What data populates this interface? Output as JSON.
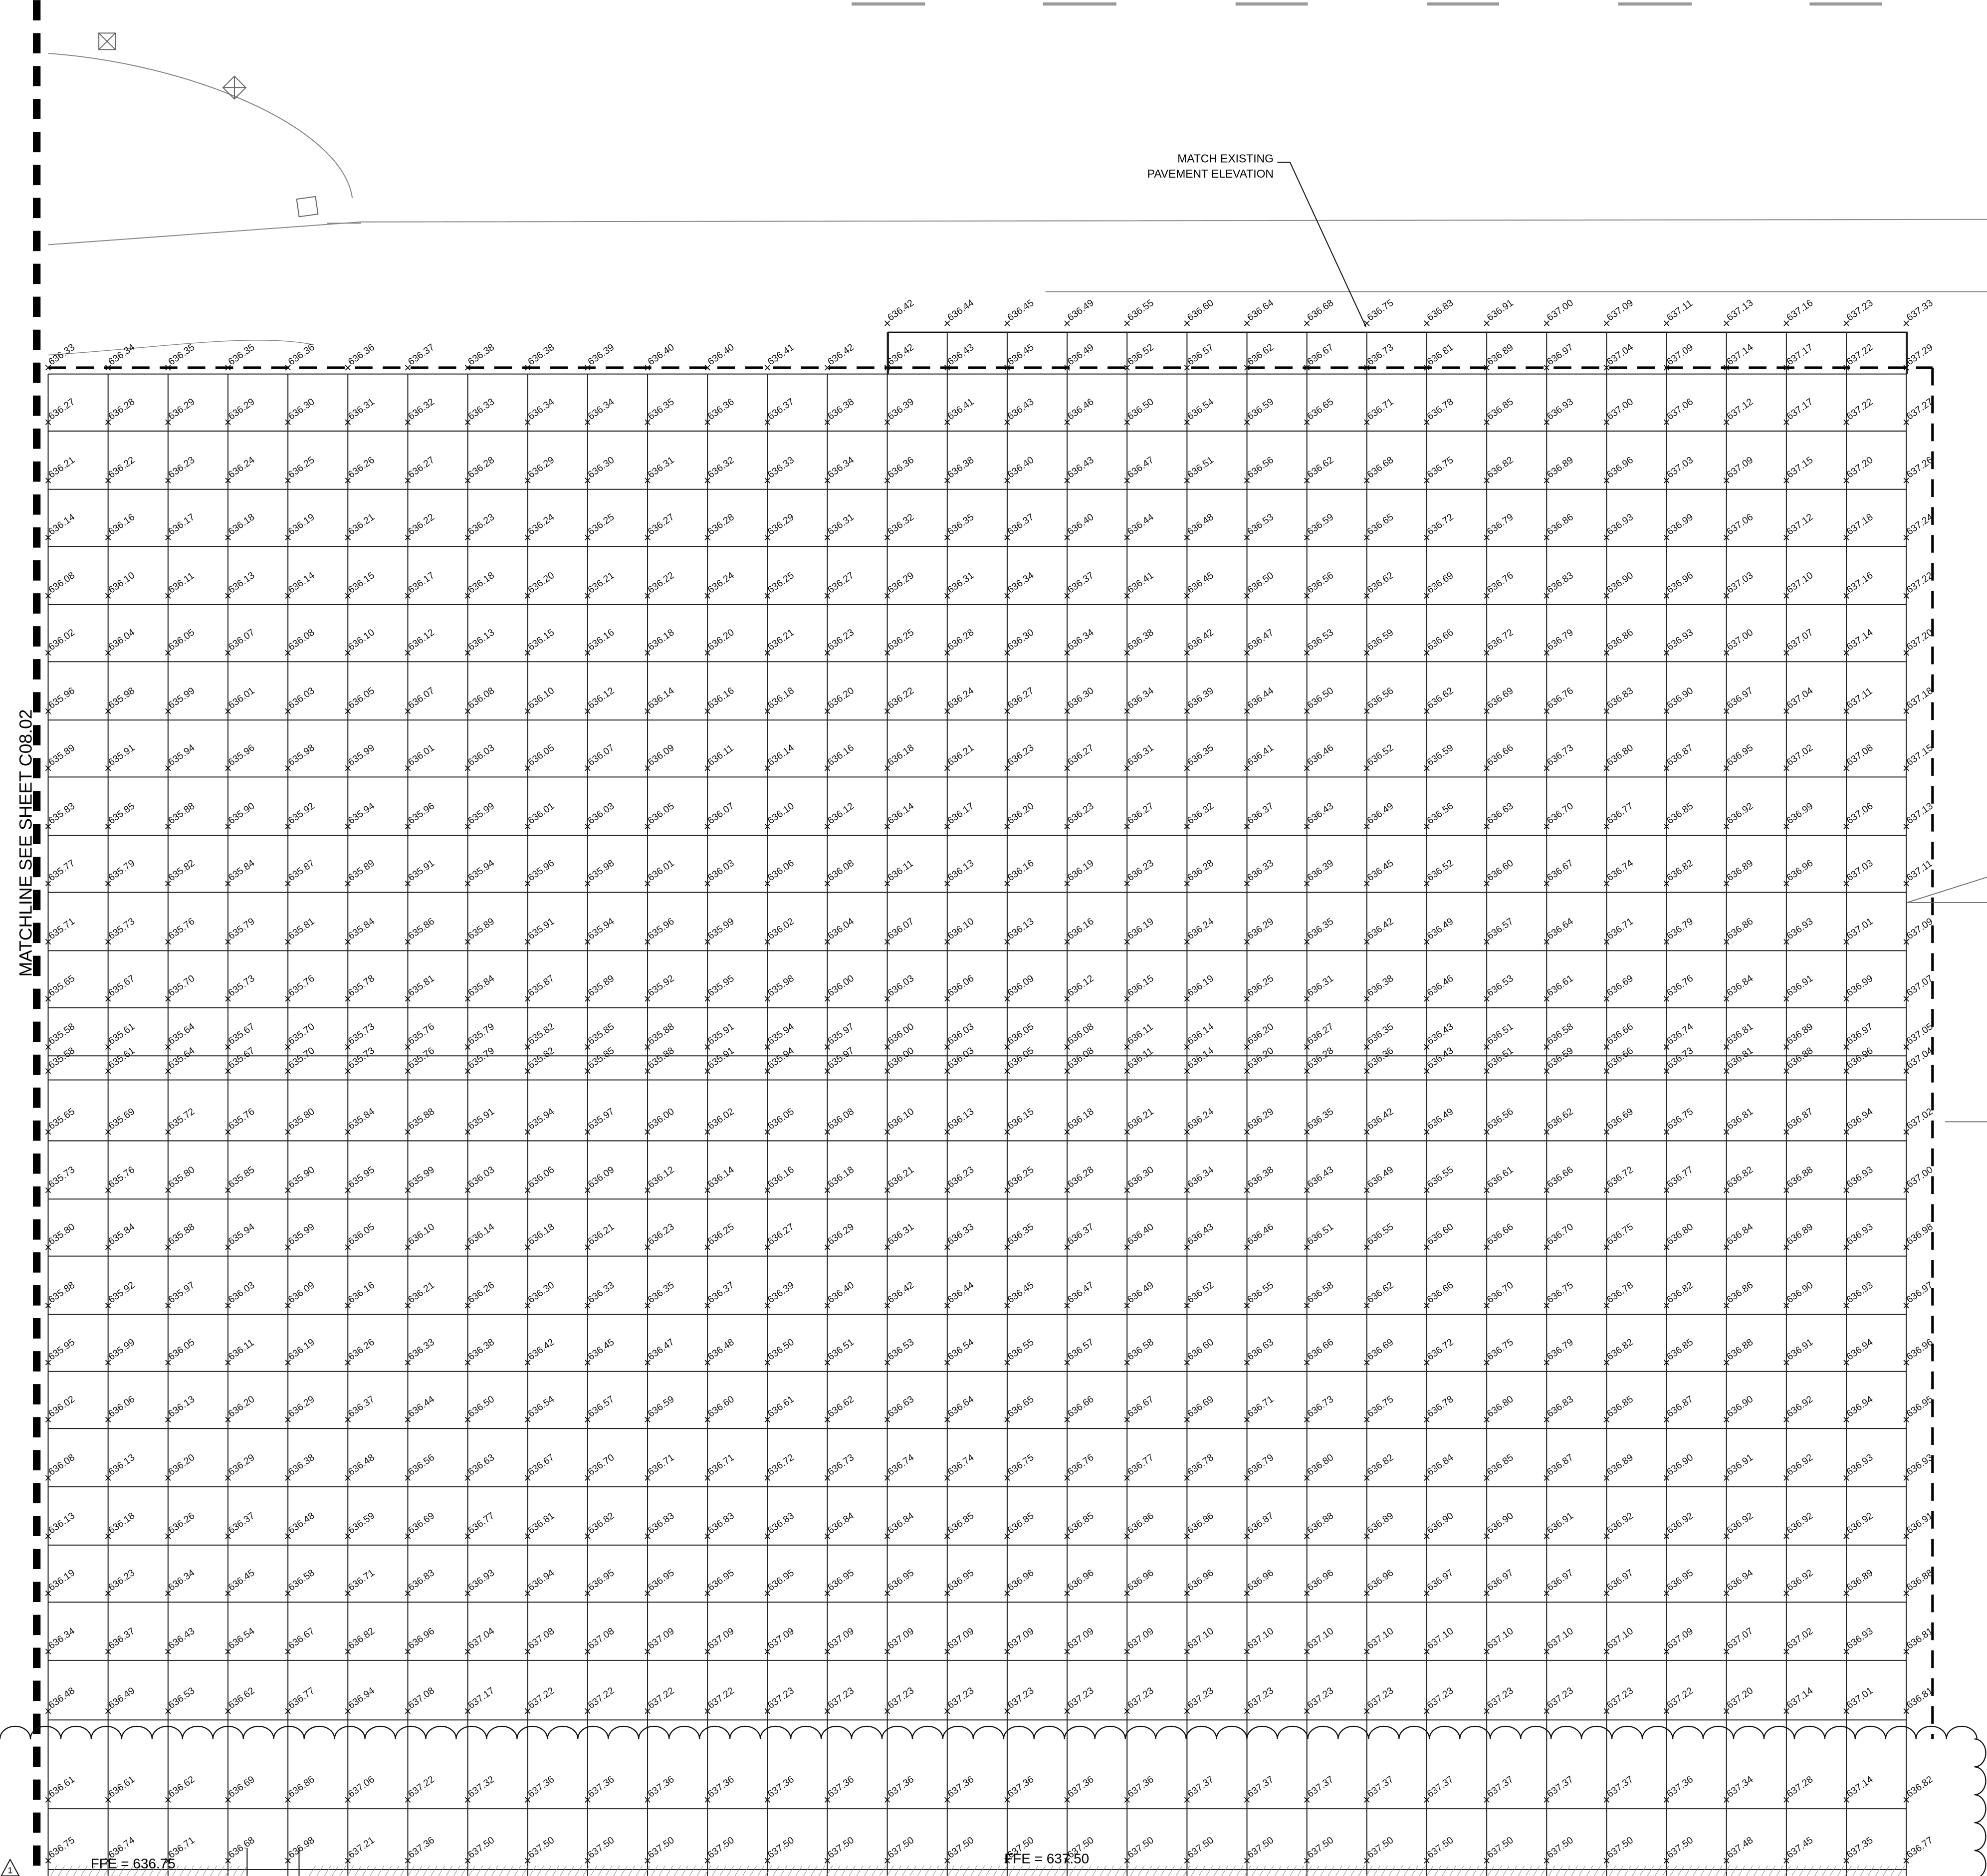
{
  "note": [
    "MATCH EXISTING",
    "PAVEMENT ELEVATION"
  ],
  "matchline": "MATCHLINE SEE SHEET C08.02",
  "ffe_labels": [
    "FFE = 636.75",
    "FFE = 637.50"
  ],
  "revision": "1",
  "top_edge_elevations": [
    "636.42",
    "636.44",
    "636.45",
    "636.49",
    "636.55",
    "636.60",
    "636.64",
    "636.68",
    "636.75",
    "636.83",
    "636.91",
    "637.00",
    "637.09",
    "637.11",
    "637.13",
    "637.16",
    "637.23",
    "637.33"
  ],
  "grid_rows": [
    [
      "636.33",
      "636.34",
      "636.35",
      "636.35",
      "636.36",
      "636.36",
      "636.37",
      "636.38",
      "636.38",
      "636.39",
      "636.40",
      "636.40",
      "636.41",
      "636.42",
      "636.42",
      "636.43",
      "636.45",
      "636.49",
      "636.52",
      "636.57",
      "636.62",
      "636.67",
      "636.73",
      "636.81",
      "636.89",
      "636.97",
      "637.04",
      "637.09",
      "637.14",
      "637.17",
      "637.22",
      "637.29"
    ],
    [
      "636.27",
      "636.28",
      "636.29",
      "636.29",
      "636.30",
      "636.31",
      "636.32",
      "636.33",
      "636.34",
      "636.34",
      "636.35",
      "636.36",
      "636.37",
      "636.38",
      "636.39",
      "636.41",
      "636.43",
      "636.46",
      "636.50",
      "636.54",
      "636.59",
      "636.65",
      "636.71",
      "636.78",
      "636.85",
      "636.93",
      "637.00",
      "637.06",
      "637.12",
      "637.17",
      "637.22",
      "637.27"
    ],
    [
      "636.21",
      "636.22",
      "636.23",
      "636.24",
      "636.25",
      "636.26",
      "636.27",
      "636.28",
      "636.29",
      "636.30",
      "636.31",
      "636.32",
      "636.33",
      "636.34",
      "636.36",
      "636.38",
      "636.40",
      "636.43",
      "636.47",
      "636.51",
      "636.56",
      "636.62",
      "636.68",
      "636.75",
      "636.82",
      "636.89",
      "636.96",
      "637.03",
      "637.09",
      "637.15",
      "637.20",
      "637.26"
    ],
    [
      "636.14",
      "636.16",
      "636.17",
      "636.18",
      "636.19",
      "636.21",
      "636.22",
      "636.23",
      "636.24",
      "636.25",
      "636.27",
      "636.28",
      "636.29",
      "636.31",
      "636.32",
      "636.35",
      "636.37",
      "636.40",
      "636.44",
      "636.48",
      "636.53",
      "636.59",
      "636.65",
      "636.72",
      "636.79",
      "636.86",
      "636.93",
      "636.99",
      "637.06",
      "637.12",
      "637.18",
      "637.24"
    ],
    [
      "636.08",
      "636.10",
      "636.11",
      "636.13",
      "636.14",
      "636.15",
      "636.17",
      "636.18",
      "636.20",
      "636.21",
      "636.22",
      "636.24",
      "636.25",
      "636.27",
      "636.29",
      "636.31",
      "636.34",
      "636.37",
      "636.41",
      "636.45",
      "636.50",
      "636.56",
      "636.62",
      "636.69",
      "636.76",
      "636.83",
      "636.90",
      "636.96",
      "637.03",
      "637.10",
      "637.16",
      "637.22"
    ],
    [
      "636.02",
      "636.04",
      "636.05",
      "636.07",
      "636.08",
      "636.10",
      "636.12",
      "636.13",
      "636.15",
      "636.16",
      "636.18",
      "636.20",
      "636.21",
      "636.23",
      "636.25",
      "636.28",
      "636.30",
      "636.34",
      "636.38",
      "636.42",
      "636.47",
      "636.53",
      "636.59",
      "636.66",
      "636.72",
      "636.79",
      "636.86",
      "636.93",
      "637.00",
      "637.07",
      "637.14",
      "637.20"
    ],
    [
      "635.96",
      "635.98",
      "635.99",
      "636.01",
      "636.03",
      "636.05",
      "636.07",
      "636.08",
      "636.10",
      "636.12",
      "636.14",
      "636.16",
      "636.18",
      "636.20",
      "636.22",
      "636.24",
      "636.27",
      "636.30",
      "636.34",
      "636.39",
      "636.44",
      "636.50",
      "636.56",
      "636.62",
      "636.69",
      "636.76",
      "636.83",
      "636.90",
      "636.97",
      "637.04",
      "637.11",
      "637.18"
    ],
    [
      "635.89",
      "635.91",
      "635.94",
      "635.96",
      "635.98",
      "635.99",
      "636.01",
      "636.03",
      "636.05",
      "636.07",
      "636.09",
      "636.11",
      "636.14",
      "636.16",
      "636.18",
      "636.21",
      "636.23",
      "636.27",
      "636.31",
      "636.35",
      "636.41",
      "636.46",
      "636.52",
      "636.59",
      "636.66",
      "636.73",
      "636.80",
      "636.87",
      "636.95",
      "637.02",
      "637.08",
      "637.15"
    ],
    [
      "635.83",
      "635.85",
      "635.88",
      "635.90",
      "635.92",
      "635.94",
      "635.96",
      "635.99",
      "636.01",
      "636.03",
      "636.05",
      "636.07",
      "636.10",
      "636.12",
      "636.14",
      "636.17",
      "636.20",
      "636.23",
      "636.27",
      "636.32",
      "636.37",
      "636.43",
      "636.49",
      "636.56",
      "636.63",
      "636.70",
      "636.77",
      "636.85",
      "636.92",
      "636.99",
      "637.06",
      "637.13"
    ],
    [
      "635.77",
      "635.79",
      "635.82",
      "635.84",
      "635.87",
      "635.89",
      "635.91",
      "635.94",
      "635.96",
      "635.98",
      "636.01",
      "636.03",
      "636.06",
      "636.08",
      "636.11",
      "636.13",
      "636.16",
      "636.19",
      "636.23",
      "636.28",
      "636.33",
      "636.39",
      "636.45",
      "636.52",
      "636.60",
      "636.67",
      "636.74",
      "636.82",
      "636.89",
      "636.96",
      "637.03",
      "637.11"
    ],
    [
      "635.71",
      "635.73",
      "635.76",
      "635.79",
      "635.81",
      "635.84",
      "635.86",
      "635.89",
      "635.91",
      "635.94",
      "635.96",
      "635.99",
      "636.02",
      "636.04",
      "636.07",
      "636.10",
      "636.13",
      "636.16",
      "636.19",
      "636.24",
      "636.29",
      "636.35",
      "636.42",
      "636.49",
      "636.57",
      "636.64",
      "636.71",
      "636.79",
      "636.86",
      "636.93",
      "637.01",
      "637.09"
    ],
    [
      "635.65",
      "635.67",
      "635.70",
      "635.73",
      "635.76",
      "635.78",
      "635.81",
      "635.84",
      "635.87",
      "635.89",
      "635.92",
      "635.95",
      "635.98",
      "636.00",
      "636.03",
      "636.06",
      "636.09",
      "636.12",
      "636.15",
      "636.19",
      "636.25",
      "636.31",
      "636.38",
      "636.46",
      "636.53",
      "636.61",
      "636.69",
      "636.76",
      "636.84",
      "636.91",
      "636.99",
      "637.07"
    ],
    [
      "635.58",
      "635.61",
      "635.64",
      "635.67",
      "635.70",
      "635.73",
      "635.76",
      "635.79",
      "635.82",
      "635.85",
      "635.88",
      "635.91",
      "635.94",
      "635.97",
      "636.00",
      "636.03",
      "636.05",
      "636.08",
      "636.11",
      "636.14",
      "636.20",
      "636.27",
      "636.35",
      "636.43",
      "636.51",
      "636.58",
      "636.66",
      "636.74",
      "636.81",
      "636.89",
      "636.97",
      "637.05"
    ],
    [
      "635.58",
      "635.61",
      "635.64",
      "635.67",
      "635.70",
      "635.73",
      "635.76",
      "635.79",
      "635.82",
      "635.85",
      "635.88",
      "635.91",
      "635.94",
      "635.97",
      "636.00",
      "636.03",
      "636.05",
      "636.08",
      "636.11",
      "636.14",
      "636.20",
      "636.28",
      "636.36",
      "636.43",
      "636.51",
      "636.59",
      "636.66",
      "636.73",
      "636.81",
      "636.88",
      "636.96",
      "637.04"
    ],
    [
      "635.65",
      "635.69",
      "635.72",
      "635.76",
      "635.80",
      "635.84",
      "635.88",
      "635.91",
      "635.94",
      "635.97",
      "636.00",
      "636.02",
      "636.05",
      "636.08",
      "636.10",
      "636.13",
      "636.15",
      "636.18",
      "636.21",
      "636.24",
      "636.29",
      "636.35",
      "636.42",
      "636.49",
      "636.56",
      "636.62",
      "636.69",
      "636.75",
      "636.81",
      "636.87",
      "636.94",
      "637.02"
    ],
    [
      "635.73",
      "635.76",
      "635.80",
      "635.85",
      "635.90",
      "635.95",
      "635.99",
      "636.03",
      "636.06",
      "636.09",
      "636.12",
      "636.14",
      "636.16",
      "636.18",
      "636.21",
      "636.23",
      "636.25",
      "636.28",
      "636.30",
      "636.34",
      "636.38",
      "636.43",
      "636.49",
      "636.55",
      "636.61",
      "636.66",
      "636.72",
      "636.77",
      "636.82",
      "636.88",
      "636.93",
      "637.00"
    ],
    [
      "635.80",
      "635.84",
      "635.88",
      "635.94",
      "635.99",
      "636.05",
      "636.10",
      "636.14",
      "636.18",
      "636.21",
      "636.23",
      "636.25",
      "636.27",
      "636.29",
      "636.31",
      "636.33",
      "636.35",
      "636.37",
      "636.40",
      "636.43",
      "636.46",
      "636.51",
      "636.55",
      "636.60",
      "636.66",
      "636.70",
      "636.75",
      "636.80",
      "636.84",
      "636.89",
      "636.93",
      "636.98"
    ],
    [
      "635.88",
      "635.92",
      "635.97",
      "636.03",
      "636.09",
      "636.16",
      "636.21",
      "636.26",
      "636.30",
      "636.33",
      "636.35",
      "636.37",
      "636.39",
      "636.40",
      "636.42",
      "636.44",
      "636.45",
      "636.47",
      "636.49",
      "636.52",
      "636.55",
      "636.58",
      "636.62",
      "636.66",
      "636.70",
      "636.75",
      "636.78",
      "636.82",
      "636.86",
      "636.90",
      "636.93",
      "636.97"
    ],
    [
      "635.95",
      "635.99",
      "636.05",
      "636.11",
      "636.19",
      "636.26",
      "636.33",
      "636.38",
      "636.42",
      "636.45",
      "636.47",
      "636.48",
      "636.50",
      "636.51",
      "636.53",
      "636.54",
      "636.55",
      "636.57",
      "636.58",
      "636.60",
      "636.63",
      "636.66",
      "636.69",
      "636.72",
      "636.75",
      "636.79",
      "636.82",
      "636.85",
      "636.88",
      "636.91",
      "636.94",
      "636.96"
    ],
    [
      "636.02",
      "636.06",
      "636.13",
      "636.20",
      "636.29",
      "636.37",
      "636.44",
      "636.50",
      "636.54",
      "636.57",
      "636.59",
      "636.60",
      "636.61",
      "636.62",
      "636.63",
      "636.64",
      "636.65",
      "636.66",
      "636.67",
      "636.69",
      "636.71",
      "636.73",
      "636.75",
      "636.78",
      "636.80",
      "636.83",
      "636.85",
      "636.87",
      "636.90",
      "636.92",
      "636.94",
      "636.95"
    ],
    [
      "636.08",
      "636.13",
      "636.20",
      "636.29",
      "636.38",
      "636.48",
      "636.56",
      "636.63",
      "636.67",
      "636.70",
      "636.71",
      "636.71",
      "636.72",
      "636.73",
      "636.74",
      "636.74",
      "636.75",
      "636.76",
      "636.77",
      "636.78",
      "636.79",
      "636.80",
      "636.82",
      "636.84",
      "636.85",
      "636.87",
      "636.89",
      "636.90",
      "636.91",
      "636.92",
      "636.93",
      "636.93"
    ],
    [
      "636.13",
      "636.18",
      "636.26",
      "636.37",
      "636.48",
      "636.59",
      "636.69",
      "636.77",
      "636.81",
      "636.82",
      "636.83",
      "636.83",
      "636.83",
      "636.84",
      "636.84",
      "636.85",
      "636.85",
      "636.85",
      "636.86",
      "636.86",
      "636.87",
      "636.88",
      "636.89",
      "636.90",
      "636.90",
      "636.91",
      "636.92",
      "636.92",
      "636.92",
      "636.92",
      "636.92",
      "636.91"
    ],
    [
      "636.19",
      "636.23",
      "636.34",
      "636.45",
      "636.58",
      "636.71",
      "636.83",
      "636.93",
      "636.94",
      "636.95",
      "636.95",
      "636.95",
      "636.95",
      "636.95",
      "636.95",
      "636.95",
      "636.96",
      "636.96",
      "636.96",
      "636.96",
      "636.96",
      "636.96",
      "636.96",
      "636.97",
      "636.97",
      "636.97",
      "636.97",
      "636.95",
      "636.94",
      "636.92",
      "636.89",
      "636.88"
    ],
    [
      "636.34",
      "636.37",
      "636.43",
      "636.54",
      "636.67",
      "636.82",
      "636.96",
      "637.04",
      "637.08",
      "637.08",
      "637.09",
      "637.09",
      "637.09",
      "637.09",
      "637.09",
      "637.09",
      "637.09",
      "637.09",
      "637.09",
      "637.10",
      "637.10",
      "637.10",
      "637.10",
      "637.10",
      "637.10",
      "637.10",
      "637.10",
      "637.09",
      "637.07",
      "637.02",
      "636.93",
      "636.81"
    ],
    [
      "636.48",
      "636.49",
      "636.53",
      "636.62",
      "636.77",
      "636.94",
      "637.08",
      "637.17",
      "637.22",
      "637.22",
      "637.22",
      "637.22",
      "637.23",
      "637.23",
      "637.23",
      "637.23",
      "637.23",
      "637.23",
      "637.23",
      "637.23",
      "637.23",
      "637.23",
      "637.23",
      "637.23",
      "637.23",
      "637.23",
      "637.23",
      "637.22",
      "637.20",
      "637.14",
      "637.01",
      "636.81"
    ],
    [
      "636.61",
      "636.61",
      "636.62",
      "636.69",
      "636.86",
      "637.06",
      "637.22",
      "637.32",
      "637.36",
      "637.36",
      "637.36",
      "637.36",
      "637.36",
      "637.36",
      "637.36",
      "637.36",
      "637.36",
      "637.36",
      "637.36",
      "637.37",
      "637.37",
      "637.37",
      "637.37",
      "637.37",
      "637.37",
      "637.37",
      "637.37",
      "637.36",
      "637.34",
      "637.28",
      "637.14",
      "636.82"
    ],
    [
      "636.75",
      "636.74",
      "636.71",
      "636.68",
      "636.98",
      "637.21",
      "637.36",
      "637.50",
      "637.50",
      "637.50",
      "637.50",
      "637.50",
      "637.50",
      "637.50",
      "637.50",
      "637.50",
      "637.50",
      "637.50",
      "637.50",
      "637.50",
      "637.50",
      "637.50",
      "637.50",
      "637.50",
      "637.50",
      "637.50",
      "637.50",
      "637.50",
      "637.48",
      "637.45",
      "637.35",
      "636.77"
    ]
  ]
}
